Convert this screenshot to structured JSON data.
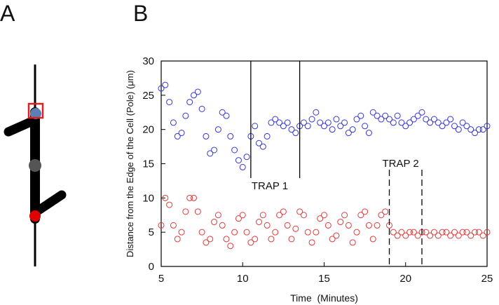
{
  "panel_labels": {
    "a": "A",
    "b": "B"
  },
  "chart_data": {
    "type": "scatter",
    "x_label": "Time  (Minutes)",
    "y_label": "Distance from the Edge of the Cell (Pole) (μm)",
    "xlim": [
      5,
      25
    ],
    "xticks": [
      5,
      10,
      15,
      20,
      25
    ],
    "ylim": [
      0,
      30
    ],
    "yticks": [
      0,
      5,
      10,
      15,
      20,
      25,
      30
    ],
    "x": [
      5,
      5.25,
      5.5,
      5.75,
      6,
      6.25,
      6.5,
      6.75,
      7,
      7.25,
      7.5,
      7.75,
      8,
      8.25,
      8.5,
      8.75,
      9,
      9.25,
      9.5,
      9.75,
      10,
      10.25,
      10.5,
      10.75,
      11,
      11.25,
      11.5,
      11.75,
      12,
      12.25,
      12.5,
      12.75,
      13,
      13.25,
      13.5,
      13.75,
      14,
      14.25,
      14.5,
      14.75,
      15,
      15.25,
      15.5,
      15.75,
      16,
      16.25,
      16.5,
      16.75,
      17,
      17.25,
      17.5,
      17.75,
      18,
      18.25,
      18.5,
      18.75,
      19,
      19.25,
      19.5,
      19.75,
      20,
      20.25,
      20.5,
      20.75,
      21,
      21.25,
      21.5,
      21.75,
      22,
      22.25,
      22.5,
      22.75,
      23,
      23.25,
      23.5,
      23.75,
      24,
      24.25,
      24.5,
      24.75,
      25
    ],
    "series": [
      {
        "color": "#3535d8",
        "values": [
          26,
          26.5,
          24,
          21,
          19,
          19.5,
          22,
          24,
          25,
          25.5,
          23,
          19,
          16.5,
          17,
          20,
          22.5,
          22,
          19,
          17,
          15.5,
          14.5,
          16,
          19,
          20.5,
          18,
          17.5,
          19,
          21,
          21.5,
          21,
          20.5,
          21,
          20,
          19.5,
          20.5,
          21,
          20.5,
          21.5,
          22.5,
          21,
          20.5,
          21,
          20,
          21.5,
          20.5,
          21,
          19.5,
          20,
          21.5,
          22,
          20.5,
          19.5,
          22.5,
          22,
          21.5,
          22,
          21.5,
          21,
          22,
          21,
          20.5,
          21,
          21.5,
          22,
          22.5,
          21.5,
          21,
          21.5,
          21,
          20.5,
          21,
          21.5,
          20.5,
          20,
          21,
          20.5,
          20,
          19.5,
          20,
          20,
          20.5
        ]
      },
      {
        "color": "#e03a3a",
        "values": [
          6,
          10,
          9,
          6,
          4,
          5,
          8,
          10,
          10,
          8,
          5,
          3.5,
          4,
          6.5,
          7.5,
          6,
          4,
          3,
          5,
          7,
          7.5,
          5,
          3.5,
          4,
          6.5,
          7.5,
          6,
          4,
          5,
          7.5,
          8,
          6,
          4,
          5.5,
          8,
          7.5,
          5,
          3.5,
          5,
          7,
          7.5,
          6,
          4,
          4.5,
          6.5,
          7.5,
          6,
          3.5,
          5,
          7.5,
          8,
          6,
          4,
          6,
          7.5,
          8,
          6,
          5,
          4.5,
          5,
          4.5,
          5,
          5,
          4.5,
          5,
          5,
          4.5,
          5,
          4.5,
          5,
          5,
          4.5,
          5,
          4.5,
          5,
          5,
          4.5,
          5,
          5,
          4.5,
          5
        ]
      }
    ],
    "annotations": [
      {
        "text": "TRAP 1",
        "x": [
          10.5,
          13.5
        ],
        "dashed": false
      },
      {
        "text": "TRAP 2",
        "x": [
          19,
          21
        ],
        "dashed": true
      }
    ]
  }
}
